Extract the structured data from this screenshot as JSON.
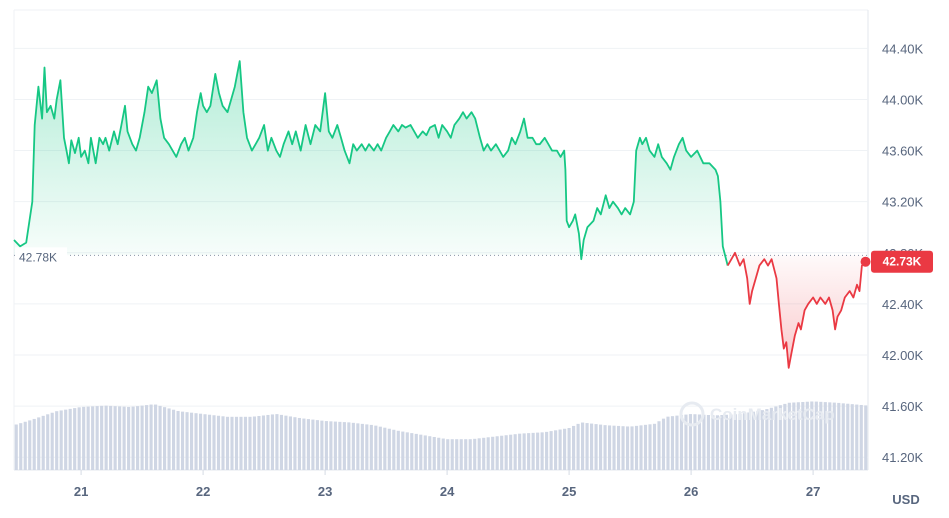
{
  "chart_data": {
    "type": "line",
    "currency": "USD",
    "watermark": "CoinMarketCap",
    "reference_label": "42.78K",
    "reference_value": 42780,
    "last_label": "42.73K",
    "last_value": 42730,
    "colors": {
      "up": "#16c784",
      "down": "#ea3943",
      "volume": "#cfd6e4",
      "grid": "#eff2f5"
    },
    "ylim": [
      41100,
      44700
    ],
    "y_ticks": [
      {
        "value": 44400,
        "label": "44.40K"
      },
      {
        "value": 44000,
        "label": "44.00K"
      },
      {
        "value": 43600,
        "label": "43.60K"
      },
      {
        "value": 43200,
        "label": "43.20K"
      },
      {
        "value": 42800,
        "label": "42.80K"
      },
      {
        "value": 42400,
        "label": "42.40K"
      },
      {
        "value": 42000,
        "label": "42.00K"
      },
      {
        "value": 41600,
        "label": "41.60K"
      },
      {
        "value": 41200,
        "label": "41.20K"
      }
    ],
    "xlim": [
      20.45,
      27.45
    ],
    "x_ticks": [
      {
        "value": 21,
        "label": "21"
      },
      {
        "value": 22,
        "label": "22"
      },
      {
        "value": 23,
        "label": "23"
      },
      {
        "value": 24,
        "label": "24"
      },
      {
        "value": 25,
        "label": "25"
      },
      {
        "value": 26,
        "label": "26"
      },
      {
        "value": 27,
        "label": "27"
      }
    ],
    "series": [
      {
        "points": [
          [
            20.45,
            42900
          ],
          [
            20.5,
            42850
          ],
          [
            20.55,
            42880
          ],
          [
            20.6,
            43200
          ],
          [
            20.62,
            43800
          ],
          [
            20.65,
            44100
          ],
          [
            20.68,
            43850
          ],
          [
            20.7,
            44250
          ],
          [
            20.72,
            43900
          ],
          [
            20.75,
            43950
          ],
          [
            20.78,
            43850
          ],
          [
            20.8,
            44000
          ],
          [
            20.83,
            44150
          ],
          [
            20.86,
            43700
          ],
          [
            20.88,
            43600
          ],
          [
            20.9,
            43500
          ],
          [
            20.92,
            43680
          ],
          [
            20.95,
            43580
          ],
          [
            20.98,
            43700
          ],
          [
            21.0,
            43550
          ],
          [
            21.03,
            43600
          ],
          [
            21.06,
            43500
          ],
          [
            21.08,
            43700
          ],
          [
            21.12,
            43500
          ],
          [
            21.15,
            43700
          ],
          [
            21.18,
            43650
          ],
          [
            21.2,
            43700
          ],
          [
            21.23,
            43600
          ],
          [
            21.27,
            43750
          ],
          [
            21.3,
            43650
          ],
          [
            21.33,
            43800
          ],
          [
            21.36,
            43950
          ],
          [
            21.38,
            43750
          ],
          [
            21.42,
            43650
          ],
          [
            21.45,
            43600
          ],
          [
            21.48,
            43700
          ],
          [
            21.52,
            43900
          ],
          [
            21.55,
            44100
          ],
          [
            21.58,
            44050
          ],
          [
            21.62,
            44150
          ],
          [
            21.65,
            43850
          ],
          [
            21.68,
            43700
          ],
          [
            21.72,
            43650
          ],
          [
            21.75,
            43600
          ],
          [
            21.78,
            43550
          ],
          [
            21.82,
            43650
          ],
          [
            21.85,
            43700
          ],
          [
            21.88,
            43600
          ],
          [
            21.92,
            43700
          ],
          [
            21.95,
            43900
          ],
          [
            21.98,
            44050
          ],
          [
            22.0,
            43950
          ],
          [
            22.03,
            43900
          ],
          [
            22.06,
            43950
          ],
          [
            22.1,
            44200
          ],
          [
            22.13,
            44050
          ],
          [
            22.16,
            43950
          ],
          [
            22.2,
            43900
          ],
          [
            22.23,
            44000
          ],
          [
            22.26,
            44100
          ],
          [
            22.3,
            44300
          ],
          [
            22.33,
            43900
          ],
          [
            22.36,
            43700
          ],
          [
            22.4,
            43600
          ],
          [
            22.43,
            43650
          ],
          [
            22.46,
            43700
          ],
          [
            22.5,
            43800
          ],
          [
            22.53,
            43600
          ],
          [
            22.56,
            43700
          ],
          [
            22.6,
            43600
          ],
          [
            22.63,
            43550
          ],
          [
            22.66,
            43650
          ],
          [
            22.7,
            43750
          ],
          [
            22.73,
            43650
          ],
          [
            22.76,
            43750
          ],
          [
            22.8,
            43600
          ],
          [
            22.84,
            43800
          ],
          [
            22.88,
            43650
          ],
          [
            22.92,
            43800
          ],
          [
            22.96,
            43750
          ],
          [
            23.0,
            44050
          ],
          [
            23.03,
            43750
          ],
          [
            23.06,
            43700
          ],
          [
            23.1,
            43800
          ],
          [
            23.13,
            43700
          ],
          [
            23.16,
            43600
          ],
          [
            23.2,
            43500
          ],
          [
            23.23,
            43650
          ],
          [
            23.26,
            43600
          ],
          [
            23.3,
            43650
          ],
          [
            23.33,
            43600
          ],
          [
            23.36,
            43650
          ],
          [
            23.4,
            43600
          ],
          [
            23.43,
            43650
          ],
          [
            23.46,
            43600
          ],
          [
            23.5,
            43700
          ],
          [
            23.53,
            43750
          ],
          [
            23.56,
            43800
          ],
          [
            23.6,
            43750
          ],
          [
            23.63,
            43800
          ],
          [
            23.66,
            43780
          ],
          [
            23.7,
            43800
          ],
          [
            23.73,
            43750
          ],
          [
            23.76,
            43700
          ],
          [
            23.8,
            43750
          ],
          [
            23.83,
            43720
          ],
          [
            23.86,
            43780
          ],
          [
            23.9,
            43800
          ],
          [
            23.93,
            43700
          ],
          [
            23.96,
            43800
          ],
          [
            24.0,
            43750
          ],
          [
            24.03,
            43700
          ],
          [
            24.06,
            43800
          ],
          [
            24.1,
            43850
          ],
          [
            24.13,
            43900
          ],
          [
            24.16,
            43850
          ],
          [
            24.2,
            43900
          ],
          [
            24.23,
            43850
          ],
          [
            24.27,
            43700
          ],
          [
            24.3,
            43600
          ],
          [
            24.33,
            43650
          ],
          [
            24.36,
            43600
          ],
          [
            24.4,
            43650
          ],
          [
            24.43,
            43600
          ],
          [
            24.46,
            43550
          ],
          [
            24.5,
            43600
          ],
          [
            24.53,
            43700
          ],
          [
            24.56,
            43650
          ],
          [
            24.6,
            43750
          ],
          [
            24.63,
            43850
          ],
          [
            24.66,
            43700
          ],
          [
            24.7,
            43700
          ],
          [
            24.73,
            43650
          ],
          [
            24.76,
            43650
          ],
          [
            24.8,
            43700
          ],
          [
            24.83,
            43650
          ],
          [
            24.86,
            43600
          ],
          [
            24.9,
            43600
          ],
          [
            24.93,
            43550
          ],
          [
            24.96,
            43600
          ],
          [
            24.97,
            43450
          ],
          [
            24.98,
            43050
          ],
          [
            25.0,
            43000
          ],
          [
            25.03,
            43050
          ],
          [
            25.05,
            43100
          ],
          [
            25.08,
            42950
          ],
          [
            25.1,
            42750
          ],
          [
            25.12,
            42900
          ],
          [
            25.15,
            43000
          ],
          [
            25.2,
            43050
          ],
          [
            25.23,
            43150
          ],
          [
            25.26,
            43100
          ],
          [
            25.3,
            43250
          ],
          [
            25.33,
            43150
          ],
          [
            25.36,
            43200
          ],
          [
            25.4,
            43150
          ],
          [
            25.43,
            43100
          ],
          [
            25.46,
            43150
          ],
          [
            25.5,
            43100
          ],
          [
            25.53,
            43200
          ],
          [
            25.55,
            43600
          ],
          [
            25.58,
            43700
          ],
          [
            25.6,
            43650
          ],
          [
            25.63,
            43700
          ],
          [
            25.66,
            43600
          ],
          [
            25.7,
            43550
          ],
          [
            25.73,
            43650
          ],
          [
            25.76,
            43550
          ],
          [
            25.8,
            43500
          ],
          [
            25.83,
            43450
          ],
          [
            25.86,
            43550
          ],
          [
            25.9,
            43650
          ],
          [
            25.93,
            43700
          ],
          [
            25.96,
            43600
          ],
          [
            26.0,
            43550
          ],
          [
            26.05,
            43600
          ],
          [
            26.1,
            43500
          ],
          [
            26.15,
            43500
          ],
          [
            26.2,
            43450
          ],
          [
            26.22,
            43400
          ],
          [
            26.24,
            43200
          ],
          [
            26.26,
            42850
          ],
          [
            26.3,
            42700
          ]
        ]
      },
      {
        "points": [
          [
            26.3,
            42700
          ],
          [
            26.33,
            42750
          ],
          [
            26.36,
            42800
          ],
          [
            26.4,
            42700
          ],
          [
            26.43,
            42750
          ],
          [
            26.46,
            42600
          ],
          [
            26.48,
            42400
          ],
          [
            26.5,
            42500
          ],
          [
            26.53,
            42600
          ],
          [
            26.56,
            42700
          ],
          [
            26.6,
            42750
          ],
          [
            26.63,
            42700
          ],
          [
            26.66,
            42750
          ],
          [
            26.7,
            42600
          ],
          [
            26.72,
            42400
          ],
          [
            26.74,
            42200
          ],
          [
            26.76,
            42050
          ],
          [
            26.78,
            42100
          ],
          [
            26.8,
            41900
          ],
          [
            26.82,
            42000
          ],
          [
            26.85,
            42150
          ],
          [
            26.88,
            42250
          ],
          [
            26.9,
            42200
          ],
          [
            26.93,
            42350
          ],
          [
            26.96,
            42400
          ],
          [
            27.0,
            42450
          ],
          [
            27.03,
            42400
          ],
          [
            27.06,
            42450
          ],
          [
            27.1,
            42400
          ],
          [
            27.13,
            42450
          ],
          [
            27.16,
            42350
          ],
          [
            27.18,
            42200
          ],
          [
            27.2,
            42300
          ],
          [
            27.23,
            42350
          ],
          [
            27.26,
            42450
          ],
          [
            27.3,
            42500
          ],
          [
            27.33,
            42450
          ],
          [
            27.36,
            42550
          ],
          [
            27.38,
            42500
          ],
          [
            27.4,
            42700
          ],
          [
            27.43,
            42730
          ]
        ]
      }
    ],
    "volume": [
      [
        20.45,
        0.32
      ],
      [
        20.6,
        0.36
      ],
      [
        20.8,
        0.42
      ],
      [
        21.0,
        0.45
      ],
      [
        21.2,
        0.46
      ],
      [
        21.4,
        0.45
      ],
      [
        21.6,
        0.47
      ],
      [
        21.8,
        0.42
      ],
      [
        22.0,
        0.4
      ],
      [
        22.2,
        0.38
      ],
      [
        22.4,
        0.38
      ],
      [
        22.6,
        0.4
      ],
      [
        22.8,
        0.37
      ],
      [
        23.0,
        0.35
      ],
      [
        23.2,
        0.34
      ],
      [
        23.4,
        0.32
      ],
      [
        23.6,
        0.28
      ],
      [
        23.8,
        0.25
      ],
      [
        24.0,
        0.22
      ],
      [
        24.2,
        0.22
      ],
      [
        24.4,
        0.24
      ],
      [
        24.6,
        0.26
      ],
      [
        24.8,
        0.27
      ],
      [
        25.0,
        0.3
      ],
      [
        25.1,
        0.34
      ],
      [
        25.3,
        0.32
      ],
      [
        25.5,
        0.31
      ],
      [
        25.7,
        0.33
      ],
      [
        25.8,
        0.38
      ],
      [
        26.0,
        0.4
      ],
      [
        26.2,
        0.39
      ],
      [
        26.4,
        0.4
      ],
      [
        26.6,
        0.43
      ],
      [
        26.8,
        0.48
      ],
      [
        27.0,
        0.49
      ],
      [
        27.2,
        0.48
      ],
      [
        27.45,
        0.46
      ]
    ]
  }
}
